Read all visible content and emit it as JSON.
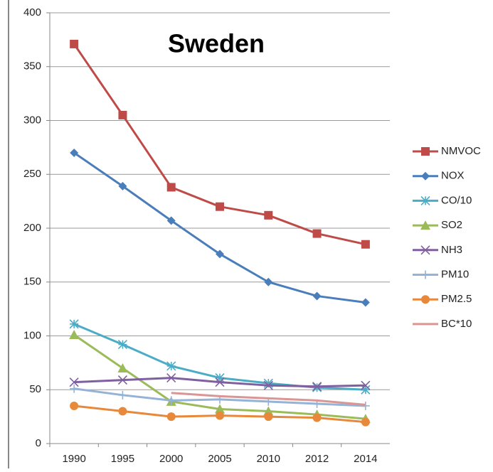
{
  "chart_data": {
    "type": "line",
    "title": "Sweden",
    "categories": [
      "1990",
      "1995",
      "2000",
      "2005",
      "2010",
      "2012",
      "2014"
    ],
    "ylim": [
      0,
      400
    ],
    "yticks": [
      0,
      50,
      100,
      150,
      200,
      250,
      300,
      350,
      400
    ],
    "grid": true,
    "legend": "right",
    "series": [
      {
        "name": "NMVOC",
        "color": "#be4b48",
        "marker": "square",
        "values": [
          371,
          305,
          238,
          220,
          212,
          195,
          185
        ]
      },
      {
        "name": "NOX",
        "color": "#4a7ebb",
        "marker": "diamond",
        "values": [
          270,
          239,
          207,
          176,
          150,
          137,
          131
        ]
      },
      {
        "name": "CO/10",
        "color": "#4bacc6",
        "marker": "star",
        "values": [
          111,
          92,
          72,
          61,
          56,
          52,
          50
        ]
      },
      {
        "name": "SO2",
        "color": "#9bbb59",
        "marker": "triangle",
        "values": [
          101,
          70,
          39,
          32,
          30,
          27,
          23
        ]
      },
      {
        "name": "NH3",
        "color": "#7f5f9f",
        "marker": "x",
        "values": [
          57,
          59,
          61,
          57,
          54,
          53,
          54
        ]
      },
      {
        "name": "PM10",
        "color": "#95b3d7",
        "marker": "plus",
        "values": [
          51,
          45,
          40,
          41,
          39,
          37,
          35
        ]
      },
      {
        "name": "PM2.5",
        "color": "#e8883b",
        "marker": "circle",
        "values": [
          35,
          30,
          25,
          26,
          25,
          24,
          20
        ]
      },
      {
        "name": "BC*10",
        "color": "#d99694",
        "marker": "none",
        "values": [
          null,
          null,
          47,
          44,
          42,
          40,
          36
        ]
      }
    ]
  }
}
